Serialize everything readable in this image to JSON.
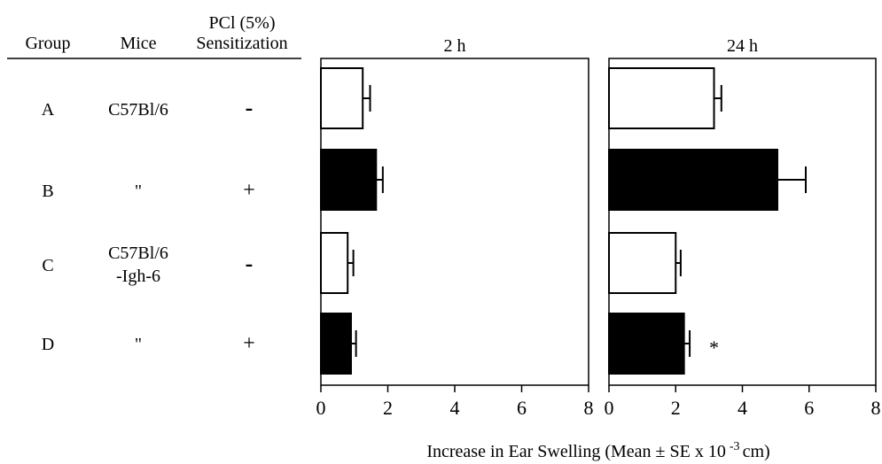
{
  "table": {
    "headers": {
      "group": "Group",
      "mice": "Mice",
      "sensitization_line1": "PCl (5%)",
      "sensitization_line2": "Sensitization"
    },
    "rows": [
      {
        "group": "A",
        "mice": [
          "C57Bl/6"
        ],
        "sensitization": "-"
      },
      {
        "group": "B",
        "mice": [
          "\""
        ],
        "sensitization": "+"
      },
      {
        "group": "C",
        "mice": [
          "C57Bl/6",
          "-Igh-6"
        ],
        "sensitization": "-"
      },
      {
        "group": "D",
        "mice": [
          "\""
        ],
        "sensitization": "+"
      }
    ]
  },
  "colors": {
    "sensitized": "#000000",
    "unsensitized": "#ffffff",
    "stroke": "#000000"
  },
  "chart_data": [
    {
      "type": "bar",
      "orientation": "horizontal",
      "title": "2 h",
      "categories": [
        "A",
        "B",
        "C",
        "D"
      ],
      "values": [
        1.25,
        1.65,
        0.8,
        0.9
      ],
      "errors": [
        0.22,
        0.2,
        0.17,
        0.15
      ],
      "fills": [
        "#ffffff",
        "#000000",
        "#ffffff",
        "#000000"
      ],
      "annotations": [
        "",
        "",
        "",
        ""
      ],
      "xlim": [
        0,
        8
      ],
      "xticks": [
        "0",
        "2",
        "4",
        "6",
        "8"
      ],
      "grid": false
    },
    {
      "type": "bar",
      "orientation": "horizontal",
      "title": "24 h",
      "categories": [
        "A",
        "B",
        "C",
        "D"
      ],
      "values": [
        3.15,
        5.05,
        2.0,
        2.25
      ],
      "errors": [
        0.22,
        0.85,
        0.15,
        0.17
      ],
      "fills": [
        "#ffffff",
        "#000000",
        "#ffffff",
        "#000000"
      ],
      "annotations": [
        "",
        "",
        "",
        "*"
      ],
      "xlim": [
        0,
        8
      ],
      "xticks": [
        "0",
        "2",
        "4",
        "6",
        "8"
      ],
      "grid": false
    }
  ],
  "xlabel": "Increase in Ear Swelling (Mean ± SE x 10",
  "xlabel_exponent": "-3",
  "xlabel_unit": "cm)"
}
